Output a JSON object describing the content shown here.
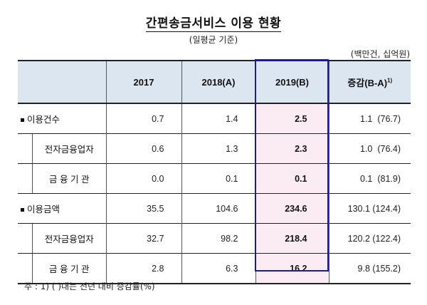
{
  "title": "간편송금서비스 이용 현황",
  "subtitle": "(일평균 기준)",
  "unit": "(백만건, 십억원)",
  "headers": {
    "col_2017": "2017",
    "col_2018": "2018(A)",
    "col_2019": "2019(B)",
    "col_diff": "증감(B-A)",
    "col_diff_sup": "1)"
  },
  "rows": [
    {
      "label": "이용건수",
      "v2017": "0.7",
      "v2018": "1.4",
      "v2019": "2.5",
      "diff": "1.1",
      "pct": "(76.7)"
    },
    {
      "label": "전자금융업자",
      "v2017": "0.6",
      "v2018": "1.3",
      "v2019": "2.3",
      "diff": "1.0",
      "pct": "(76.4)"
    },
    {
      "label": "금 융 기 관",
      "v2017": "0.0",
      "v2018": "0.1",
      "v2019": "0.1",
      "diff": "0.1",
      "pct": "(81.9)"
    },
    {
      "label": "이용금액",
      "v2017": "35.5",
      "v2018": "104.6",
      "v2019": "234.6",
      "diff": "130.1",
      "pct": "(124.4)"
    },
    {
      "label": "전자금융업자",
      "v2017": "32.7",
      "v2018": "98.2",
      "v2019": "218.4",
      "diff": "120.2",
      "pct": "(122.4)"
    },
    {
      "label": "금 융 기 관",
      "v2017": "2.8",
      "v2018": "6.3",
      "v2019": "16.2",
      "diff": "9.8",
      "pct": "(155.2)"
    }
  ],
  "note": "주 : 1) (  )내는 전년 대비 증감률(%)"
}
